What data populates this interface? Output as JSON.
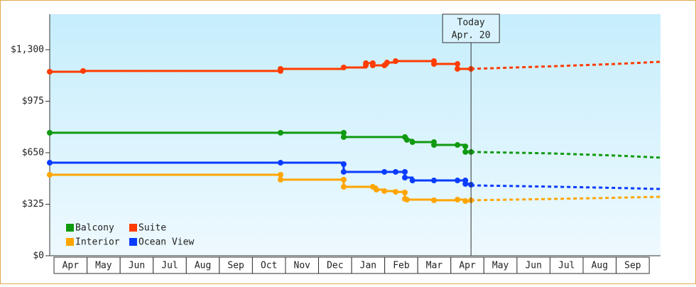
{
  "chart_data": {
    "type": "step",
    "xlim": [
      -0.13,
      18.34
    ],
    "ylim": [
      0,
      1524
    ],
    "yticks": [
      {
        "value": 0,
        "label": "$0"
      },
      {
        "value": 325,
        "label": "$325"
      },
      {
        "value": 650,
        "label": "$650"
      },
      {
        "value": 975,
        "label": "$975"
      },
      {
        "value": 1300,
        "label": "$1,300"
      }
    ],
    "xticks": [
      {
        "value": 0.5,
        "label": "Apr"
      },
      {
        "value": 1.5,
        "label": "May"
      },
      {
        "value": 2.5,
        "label": "Jun"
      },
      {
        "value": 3.5,
        "label": "Jul"
      },
      {
        "value": 4.5,
        "label": "Aug"
      },
      {
        "value": 5.5,
        "label": "Sep"
      },
      {
        "value": 6.5,
        "label": "Oct"
      },
      {
        "value": 7.5,
        "label": "Nov"
      },
      {
        "value": 8.5,
        "label": "Dec"
      },
      {
        "value": 9.5,
        "label": "Jan"
      },
      {
        "value": 10.5,
        "label": "Feb"
      },
      {
        "value": 11.5,
        "label": "Mar"
      },
      {
        "value": 12.5,
        "label": "Apr"
      },
      {
        "value": 13.5,
        "label": "May"
      },
      {
        "value": 14.5,
        "label": "Jun"
      },
      {
        "value": 15.5,
        "label": "Jul"
      },
      {
        "value": 16.5,
        "label": "Aug"
      },
      {
        "value": 17.5,
        "label": "Sep"
      }
    ],
    "today": {
      "x": 12.61,
      "title": "Today",
      "date": "Apr. 20"
    },
    "series": [
      {
        "name": "Balcony",
        "color": "#109a10",
        "x": [
          -0.13,
          6.85,
          8.76,
          8.76,
          10.61,
          10.67,
          10.84,
          11.49,
          11.49,
          12.2,
          12.44,
          12.44,
          12.61
        ],
        "values": [
          776,
          776,
          776,
          749,
          749,
          731,
          717,
          717,
          699,
          699,
          690,
          655,
          655
        ],
        "forecast": {
          "x": [
            12.61,
            15,
            17,
            18.34
          ],
          "values": [
            655,
            646,
            632,
            619
          ]
        }
      },
      {
        "name": "Suite",
        "color": "#ff3c00",
        "x": [
          -0.13,
          0.88,
          6.85,
          6.85,
          8.76,
          9.43,
          9.43,
          9.64,
          9.64,
          9.99,
          10.07,
          10.33,
          11.49,
          11.49,
          12.2,
          12.2,
          12.61
        ],
        "values": [
          1161,
          1166,
          1166,
          1179,
          1188,
          1201,
          1215,
          1215,
          1201,
          1201,
          1219,
          1228,
          1228,
          1210,
          1210,
          1179,
          1179
        ],
        "forecast": {
          "x": [
            12.61,
            15,
            17,
            18.34
          ],
          "values": [
            1179,
            1195,
            1210,
            1224
          ]
        }
      },
      {
        "name": "Interior",
        "color": "#ffa500",
        "x": [
          -0.13,
          6.85,
          6.85,
          8.76,
          8.76,
          9.64,
          9.75,
          9.99,
          10.33,
          10.61,
          10.61,
          10.67,
          11.49,
          12.2,
          12.44,
          12.61
        ],
        "values": [
          511,
          511,
          480,
          480,
          435,
          435,
          417,
          408,
          403,
          399,
          359,
          354,
          350,
          354,
          345,
          350
        ],
        "forecast": {
          "x": [
            12.61,
            15,
            17,
            18.34
          ],
          "values": [
            350,
            358,
            366,
            372
          ]
        }
      },
      {
        "name": "Ocean View",
        "color": "#0a3cff",
        "x": [
          -0.13,
          6.85,
          8.76,
          8.76,
          9.99,
          10.33,
          10.61,
          10.61,
          10.84,
          11.49,
          12.2,
          12.44,
          12.44,
          12.61
        ],
        "values": [
          587,
          587,
          578,
          529,
          529,
          529,
          529,
          493,
          475,
          475,
          475,
          475,
          453,
          448
        ],
        "forecast": {
          "x": [
            12.61,
            15,
            17,
            18.34
          ],
          "values": [
            444,
            436,
            428,
            421
          ]
        }
      }
    ]
  }
}
